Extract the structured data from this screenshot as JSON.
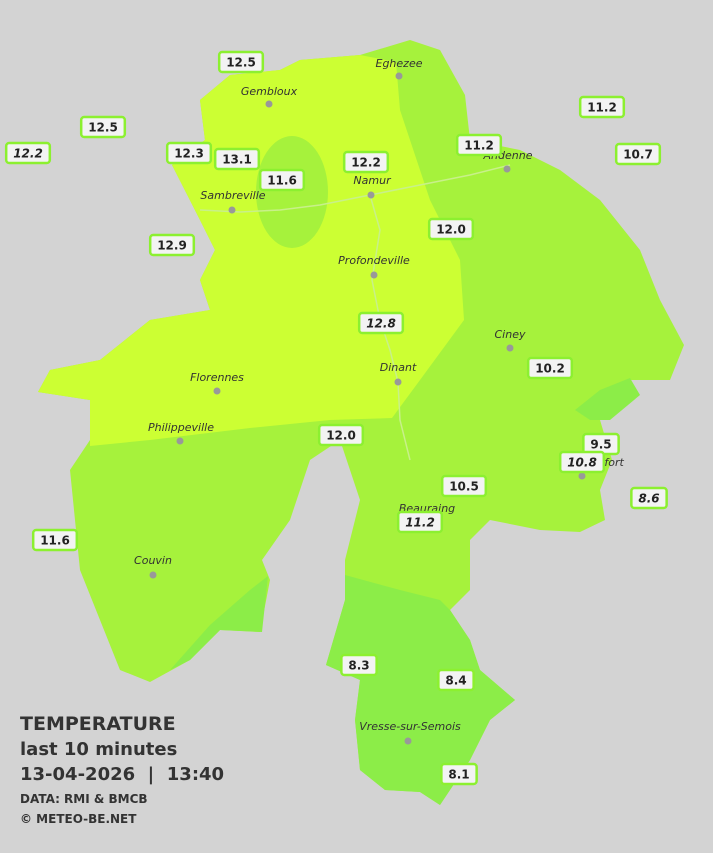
{
  "title": {
    "heading": "TEMPERATURE",
    "period": "last 10 minutes",
    "datetime": "13-04-2026  |  13:40",
    "source": "DATA: RMI & BMCB",
    "copyright": "© METEO-BE.NET"
  },
  "cities": [
    "Eghezee",
    "Gembloux",
    "Andenne",
    "Namur",
    "Sambreville",
    "Profondeville",
    "Ciney",
    "Dinant",
    "Florennes",
    "Philippeville",
    "Rochefort",
    "Beauraing",
    "Couvin",
    "Vresse-sur-Semois"
  ],
  "stations": [
    {
      "label": "12.5",
      "italic": false
    },
    {
      "label": "12.5",
      "italic": false
    },
    {
      "label": "12.2",
      "italic": true
    },
    {
      "label": "12.3",
      "italic": false
    },
    {
      "label": "13.1",
      "italic": false
    },
    {
      "label": "11.6",
      "italic": false
    },
    {
      "label": "12.2",
      "italic": false
    },
    {
      "label": "11.2",
      "italic": false
    },
    {
      "label": "11.2",
      "italic": false
    },
    {
      "label": "10.7",
      "italic": false
    },
    {
      "label": "12.9",
      "italic": false
    },
    {
      "label": "12.0",
      "italic": false
    },
    {
      "label": "12.8",
      "italic": true
    },
    {
      "label": "10.2",
      "italic": false
    },
    {
      "label": "12.0",
      "italic": false
    },
    {
      "label": "9.5",
      "italic": false
    },
    {
      "label": "10.8",
      "italic": true
    },
    {
      "label": "8.6",
      "italic": true
    },
    {
      "label": "10.5",
      "italic": false
    },
    {
      "label": "11.2",
      "italic": true
    },
    {
      "label": "11.6",
      "italic": false
    },
    {
      "label": "8.3",
      "italic": false
    },
    {
      "label": "8.4",
      "italic": false
    },
    {
      "label": "8.1",
      "italic": false
    }
  ]
}
